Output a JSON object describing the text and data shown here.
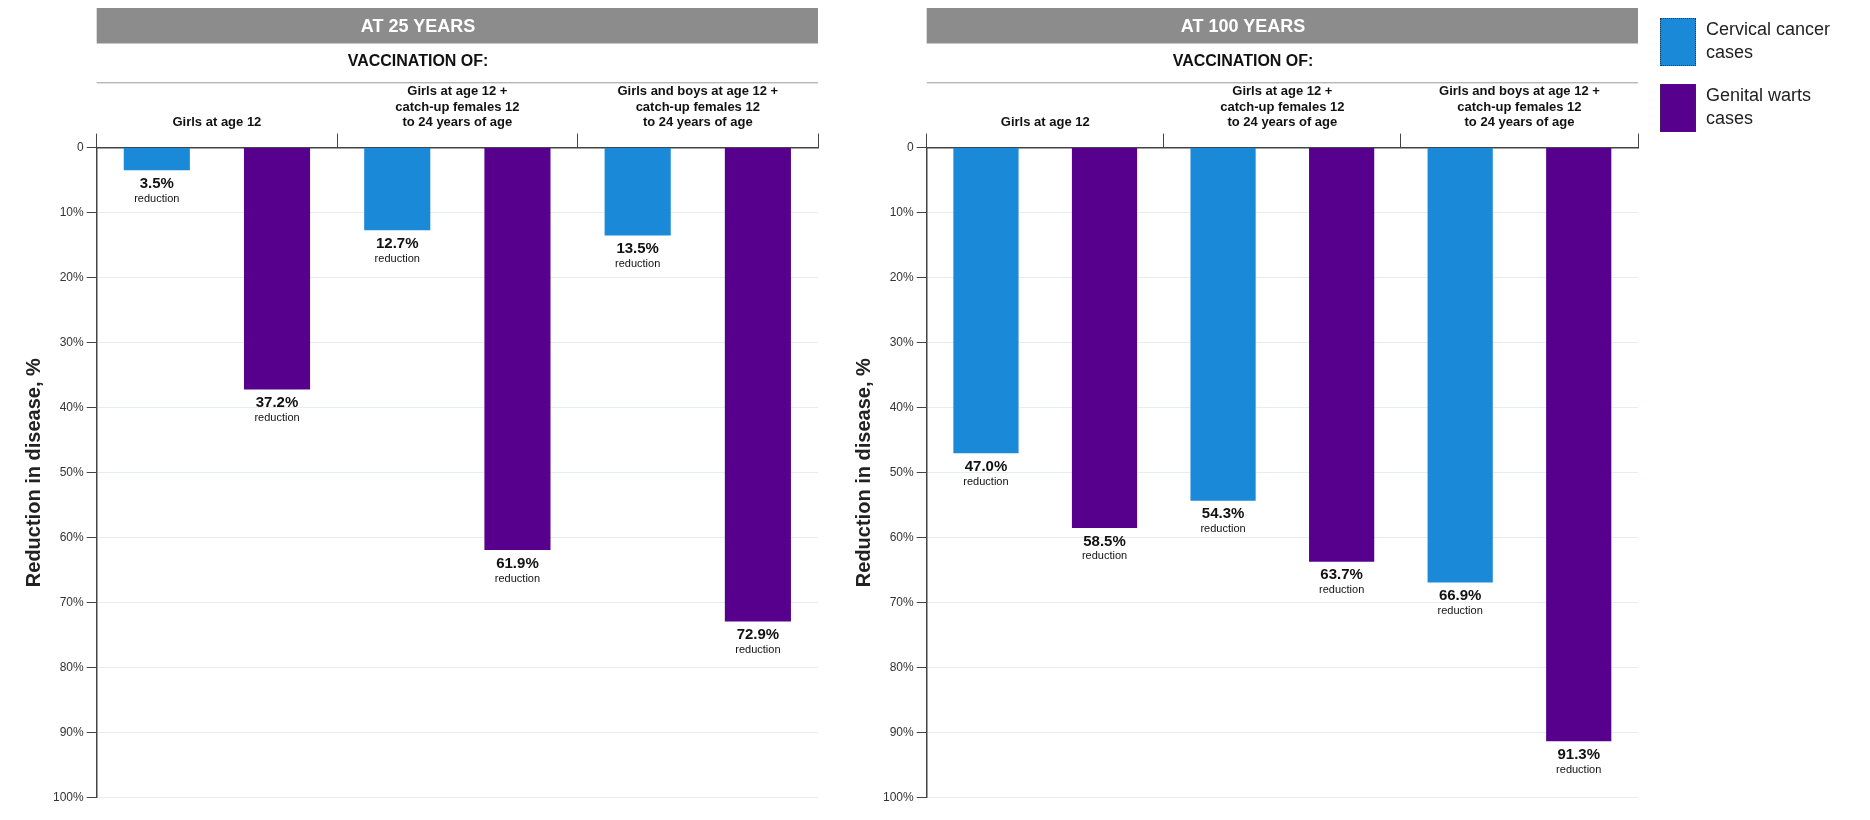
{
  "chart_data": [
    {
      "type": "bar",
      "title": "AT 25 YEARS",
      "subtitle": "VACCINATION OF:",
      "ylabel": "Reduction in disease, %",
      "categories": [
        "Girls at age 12",
        "Girls at age 12 +\ncatch-up females 12\nto 24 years of age",
        "Girls and boys at age 12 +\ncatch-up females 12\nto 24 years of age"
      ],
      "series": [
        {
          "color": "#1a8ad8",
          "values": [
            3.5,
            12.7,
            13.5
          ],
          "value_labels": [
            "3.5%\nreduction",
            "12.7%\nreduction",
            "13.5%\nreduction"
          ]
        },
        {
          "color": "#58008e",
          "values": [
            37.2,
            61.9,
            72.9
          ],
          "value_labels": [
            "37.2%\nreduction",
            "61.9%\nreduction",
            "72.9%\nreduction"
          ]
        }
      ],
      "ylim": [
        100,
        0
      ],
      "yticks": [
        0,
        {
          "value": 10,
          "label": "10%"
        },
        {
          "value": 20,
          "label": "20%"
        },
        {
          "value": 30,
          "label": "30%"
        },
        {
          "value": 40,
          "label": "40%"
        },
        {
          "value": 50,
          "label": "50%"
        },
        {
          "value": 60,
          "label": "60%"
        },
        {
          "value": 70,
          "label": "70%"
        },
        {
          "value": 80,
          "label": "80%"
        },
        {
          "value": 90,
          "label": "90%"
        },
        {
          "value": 100,
          "label": "100%"
        }
      ],
      "grid": "y",
      "legend": false
    },
    {
      "type": "bar",
      "title": "AT 100 YEARS",
      "subtitle": "VACCINATION OF:",
      "ylabel": "Reduction in disease, %",
      "categories": [
        "Girls at age 12",
        "Girls at age 12 +\ncatch-up females 12\nto 24 years of age",
        "Girls and boys at age 12 +\ncatch-up females 12\nto 24 years of age"
      ],
      "series": [
        {
          "name": "Cervical cancer cases",
          "color": "#1a8ad8",
          "values": [
            47.0,
            54.3,
            66.9
          ],
          "value_labels": [
            "47.0%\nreduction",
            "54.3%\nreduction",
            "66.9%\nreduction"
          ]
        },
        {
          "name": "Genital warts cases",
          "color": "#58008e",
          "values": [
            58.5,
            63.7,
            91.3
          ],
          "value_labels": [
            "58.5%\nreduction",
            "63.7%\nreduction",
            "91.3%\nreduction"
          ]
        }
      ],
      "ylim": [
        100,
        0
      ],
      "yticks": [
        0,
        {
          "value": 10,
          "label": "10%"
        },
        {
          "value": 20,
          "label": "20%"
        },
        {
          "value": 30,
          "label": "30%"
        },
        {
          "value": 40,
          "label": "40%"
        },
        {
          "value": 50,
          "label": "50%"
        },
        {
          "value": 60,
          "label": "60%"
        },
        {
          "value": 70,
          "label": "70%"
        },
        {
          "value": 80,
          "label": "80%"
        },
        {
          "value": 90,
          "label": "90%"
        },
        {
          "value": 100,
          "label": "100%"
        }
      ],
      "grid": "y",
      "legend": "right"
    }
  ]
}
